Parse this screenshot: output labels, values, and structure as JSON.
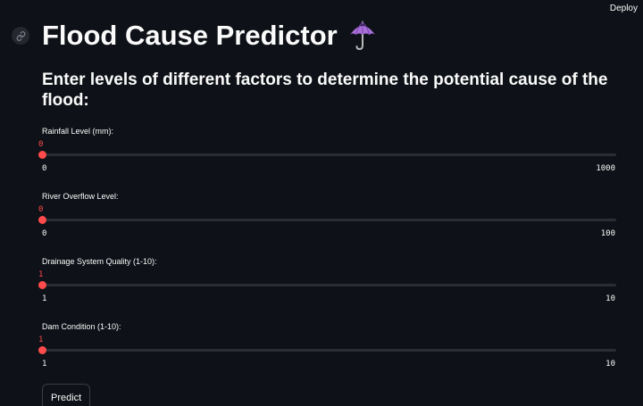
{
  "header": {
    "deploy_label": "Deploy"
  },
  "title": {
    "text": "Flood Cause Predictor",
    "link_icon": "link-icon",
    "emoji_icon": "umbrella-icon"
  },
  "subtitle": "Enter levels of different factors to determine the potential cause of the flood:",
  "sliders": [
    {
      "label": "Rainfall Level (mm):",
      "value": "0",
      "min": "0",
      "max": "1000"
    },
    {
      "label": "River Overflow Level:",
      "value": "0",
      "min": "0",
      "max": "100"
    },
    {
      "label": "Drainage System Quality (1-10):",
      "value": "1",
      "min": "1",
      "max": "10"
    },
    {
      "label": "Dam Condition (1-10):",
      "value": "1",
      "min": "1",
      "max": "10"
    }
  ],
  "predict_button": "Predict",
  "colors": {
    "background": "#0e1117",
    "accent": "#ff4b4b",
    "track": "#2b2d36",
    "text": "#fafafa"
  }
}
